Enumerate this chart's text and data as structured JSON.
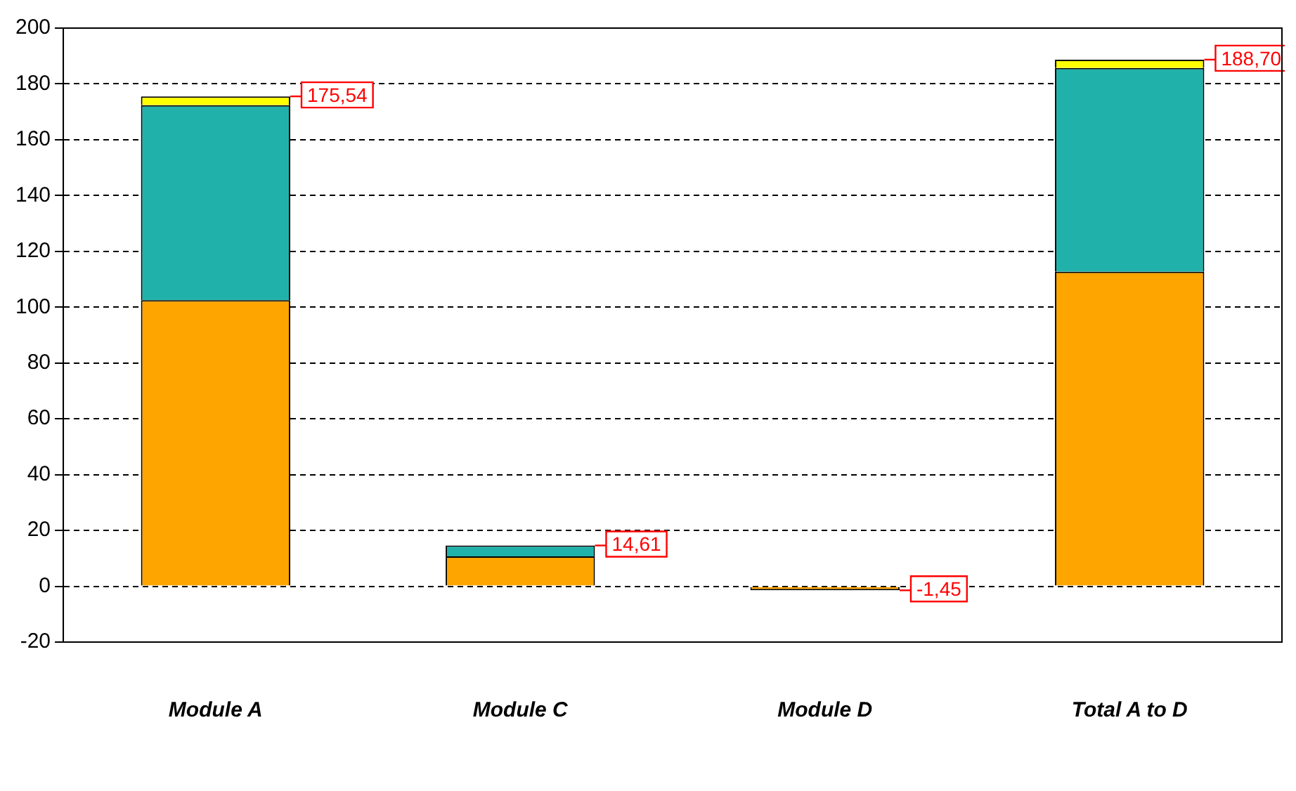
{
  "chart_data": {
    "type": "bar",
    "stacked": true,
    "categories": [
      "Module A",
      "Module C",
      "Module D",
      "Total A to D"
    ],
    "series": [
      {
        "color": "#ffa500",
        "values": [
          102.5,
          10.7,
          -1.45,
          112.7
        ]
      },
      {
        "color": "#20b2aa",
        "values": [
          69.9,
          3.91,
          null,
          73.0
        ]
      },
      {
        "color": "#ffff00",
        "values": [
          3.14,
          null,
          null,
          3.0
        ]
      }
    ],
    "totals": [
      "175,54",
      "14,61",
      "-1,45",
      "188,70"
    ],
    "ylim": [
      -20,
      200
    ],
    "yticks": [
      -20,
      0,
      20,
      40,
      60,
      80,
      100,
      120,
      140,
      160,
      180,
      200
    ],
    "grid": "y",
    "legend": false
  }
}
